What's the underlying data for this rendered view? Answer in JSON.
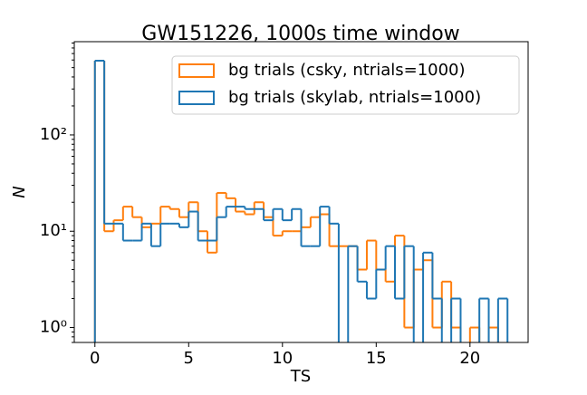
{
  "chart_data": {
    "type": "step-histogram",
    "title": "GW151226, 1000s time window",
    "xlabel": "TS",
    "ylabel": "N",
    "bins": [
      0,
      0.5,
      1,
      1.5,
      2,
      2.5,
      3,
      3.5,
      4,
      4.5,
      5,
      5.5,
      6,
      6.5,
      7,
      7.5,
      8,
      8.5,
      9,
      9.5,
      10,
      10.5,
      11,
      11.5,
      12,
      12.5,
      13,
      13.5,
      14,
      14.5,
      15,
      15.5,
      16,
      16.5,
      17,
      17.5,
      18,
      18.5,
      19,
      19.5,
      20,
      20.5,
      21,
      21.5,
      22
    ],
    "series": [
      {
        "name": "bg trials (csky, ntrials=1000)",
        "color": "#ff7f0e",
        "values": [
          590,
          10,
          13,
          18,
          14,
          11,
          12,
          18,
          17,
          14,
          20,
          10,
          6,
          25,
          22,
          16,
          15,
          20,
          14,
          9,
          10,
          10,
          11,
          14,
          15,
          7,
          7,
          7,
          4,
          8,
          4,
          3,
          9,
          1,
          4,
          5,
          1,
          3,
          1,
          0,
          1,
          0,
          1,
          0
        ]
      },
      {
        "name": "bg trials (skylab, ntrials=1000)",
        "color": "#1f77b4",
        "values": [
          590,
          12,
          12,
          8,
          8,
          12,
          7,
          12,
          12,
          11,
          16,
          8,
          8,
          14,
          18,
          18,
          17,
          17,
          13,
          17,
          13,
          17,
          7,
          7,
          18,
          12,
          0,
          7,
          3,
          2,
          4,
          7,
          2,
          7,
          0,
          6,
          2,
          0,
          2,
          0,
          0,
          2,
          0,
          2
        ]
      }
    ],
    "log_y": true,
    "xlim": [
      -1.1,
      23.1
    ],
    "ylim": [
      0.7,
      930
    ],
    "xticks": [
      0,
      5,
      10,
      15,
      20
    ],
    "yticks": [
      {
        "value": 1,
        "label": "10⁰"
      },
      {
        "value": 10,
        "label": "10¹"
      },
      {
        "value": 100,
        "label": "10²"
      }
    ],
    "legend": "upper right"
  }
}
